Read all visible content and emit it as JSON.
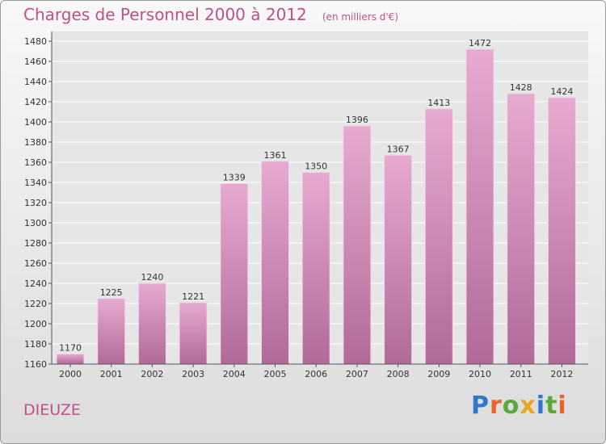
{
  "title": "Charges de Personnel 2000 à 2012",
  "subtitle": "(en milliers d'€)",
  "commune": "DIEUZE",
  "logo_text": "Proxiti",
  "colors": {
    "accent": "#c0508a",
    "bar_top": "#e6aad0",
    "bar_bottom": "#b06a98",
    "grid": "#ffffff",
    "axis_text": "#333333"
  },
  "chart_data": {
    "type": "bar",
    "title": "Charges de Personnel 2000 à 2012",
    "subtitle": "(en milliers d'€)",
    "categories": [
      "2000",
      "2001",
      "2002",
      "2003",
      "2004",
      "2005",
      "2006",
      "2007",
      "2008",
      "2009",
      "2010",
      "2011",
      "2012"
    ],
    "values": [
      1170,
      1225,
      1240,
      1221,
      1339,
      1361,
      1350,
      1396,
      1367,
      1413,
      1472,
      1428,
      1424
    ],
    "ylim": [
      1160,
      1480
    ],
    "yticks": [
      1160,
      1180,
      1200,
      1220,
      1240,
      1260,
      1280,
      1300,
      1320,
      1340,
      1360,
      1380,
      1400,
      1420,
      1440,
      1460,
      1480
    ],
    "grid": true,
    "legend": "none"
  }
}
